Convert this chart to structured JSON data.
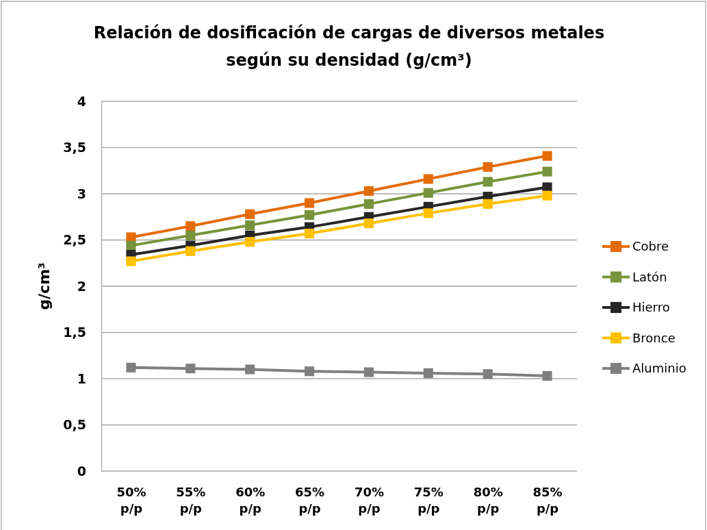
{
  "chart_data": {
    "type": "line",
    "title": "Relación de dosificación de cargas de diversos metales según su densidad (g/cm³)",
    "ylabel": "g/cm³",
    "categories": [
      "50% p/p",
      "55% p/p",
      "60% p/p",
      "65% p/p",
      "70% p/p",
      "75% p/p",
      "80% p/p",
      "85% p/p"
    ],
    "series": [
      {
        "name": "Cobre",
        "color": "#e36c09",
        "values": [
          2.53,
          2.65,
          2.78,
          2.9,
          3.03,
          3.16,
          3.29,
          3.41
        ]
      },
      {
        "name": "Latón",
        "color": "#77933c",
        "values": [
          2.44,
          2.55,
          2.66,
          2.77,
          2.89,
          3.01,
          3.13,
          3.24
        ]
      },
      {
        "name": "Hierro",
        "color": "#262626",
        "values": [
          2.34,
          2.44,
          2.55,
          2.64,
          2.75,
          2.86,
          2.97,
          3.07
        ]
      },
      {
        "name": "Bronce",
        "color": "#ffc000",
        "values": [
          2.27,
          2.38,
          2.48,
          2.57,
          2.68,
          2.79,
          2.89,
          2.98
        ]
      },
      {
        "name": "Aluminio",
        "color": "#7f7f7f",
        "values": [
          1.12,
          1.11,
          1.1,
          1.08,
          1.07,
          1.06,
          1.05,
          1.03
        ]
      }
    ],
    "ylim": [
      0,
      4
    ],
    "yticks": [
      0,
      {
        "value": 0.5,
        "label": "0,5"
      },
      1,
      {
        "value": 1.5,
        "label": "1,5"
      },
      2,
      {
        "value": 2.5,
        "label": "2,5"
      },
      3,
      {
        "value": 3.5,
        "label": "3,5"
      },
      4
    ],
    "grid": "y",
    "legend": "right",
    "marker": "square",
    "line_style": "solid"
  }
}
